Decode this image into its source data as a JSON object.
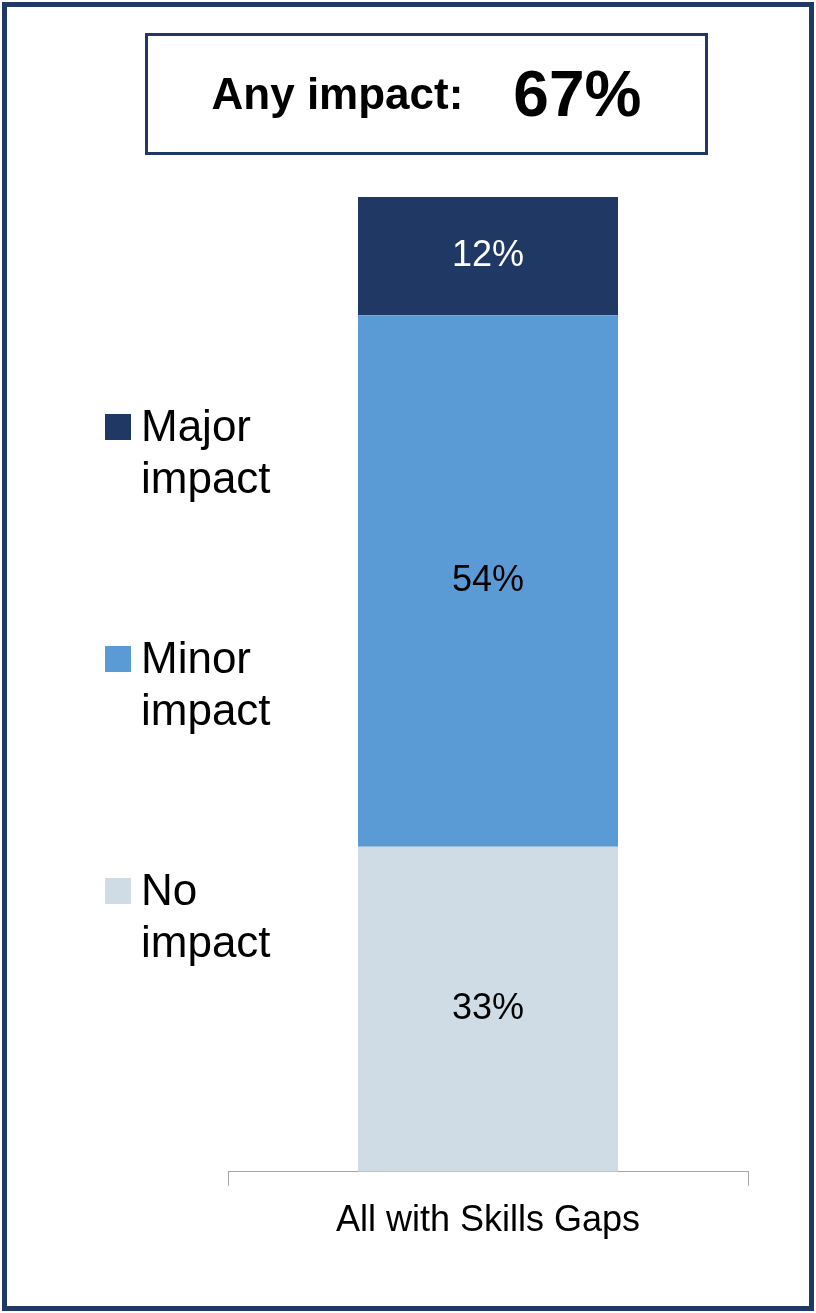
{
  "chart_data": {
    "type": "bar",
    "title": "Any impact:",
    "annotations": [
      "67%"
    ],
    "stacked": true,
    "categories": [
      "All with Skills Gaps"
    ],
    "series": [
      {
        "name": "No impact",
        "color": "#cfdce5",
        "values": [
          33
        ],
        "value_labels": [
          "33%"
        ]
      },
      {
        "name": "Minor impact",
        "color": "#5b9bd5",
        "values": [
          54
        ],
        "value_labels": [
          "54%"
        ]
      },
      {
        "name": "Major impact",
        "color": "#1f3864",
        "values": [
          12
        ],
        "value_labels": [
          "12%"
        ]
      }
    ],
    "legend": "left",
    "tick_labels": "x"
  }
}
